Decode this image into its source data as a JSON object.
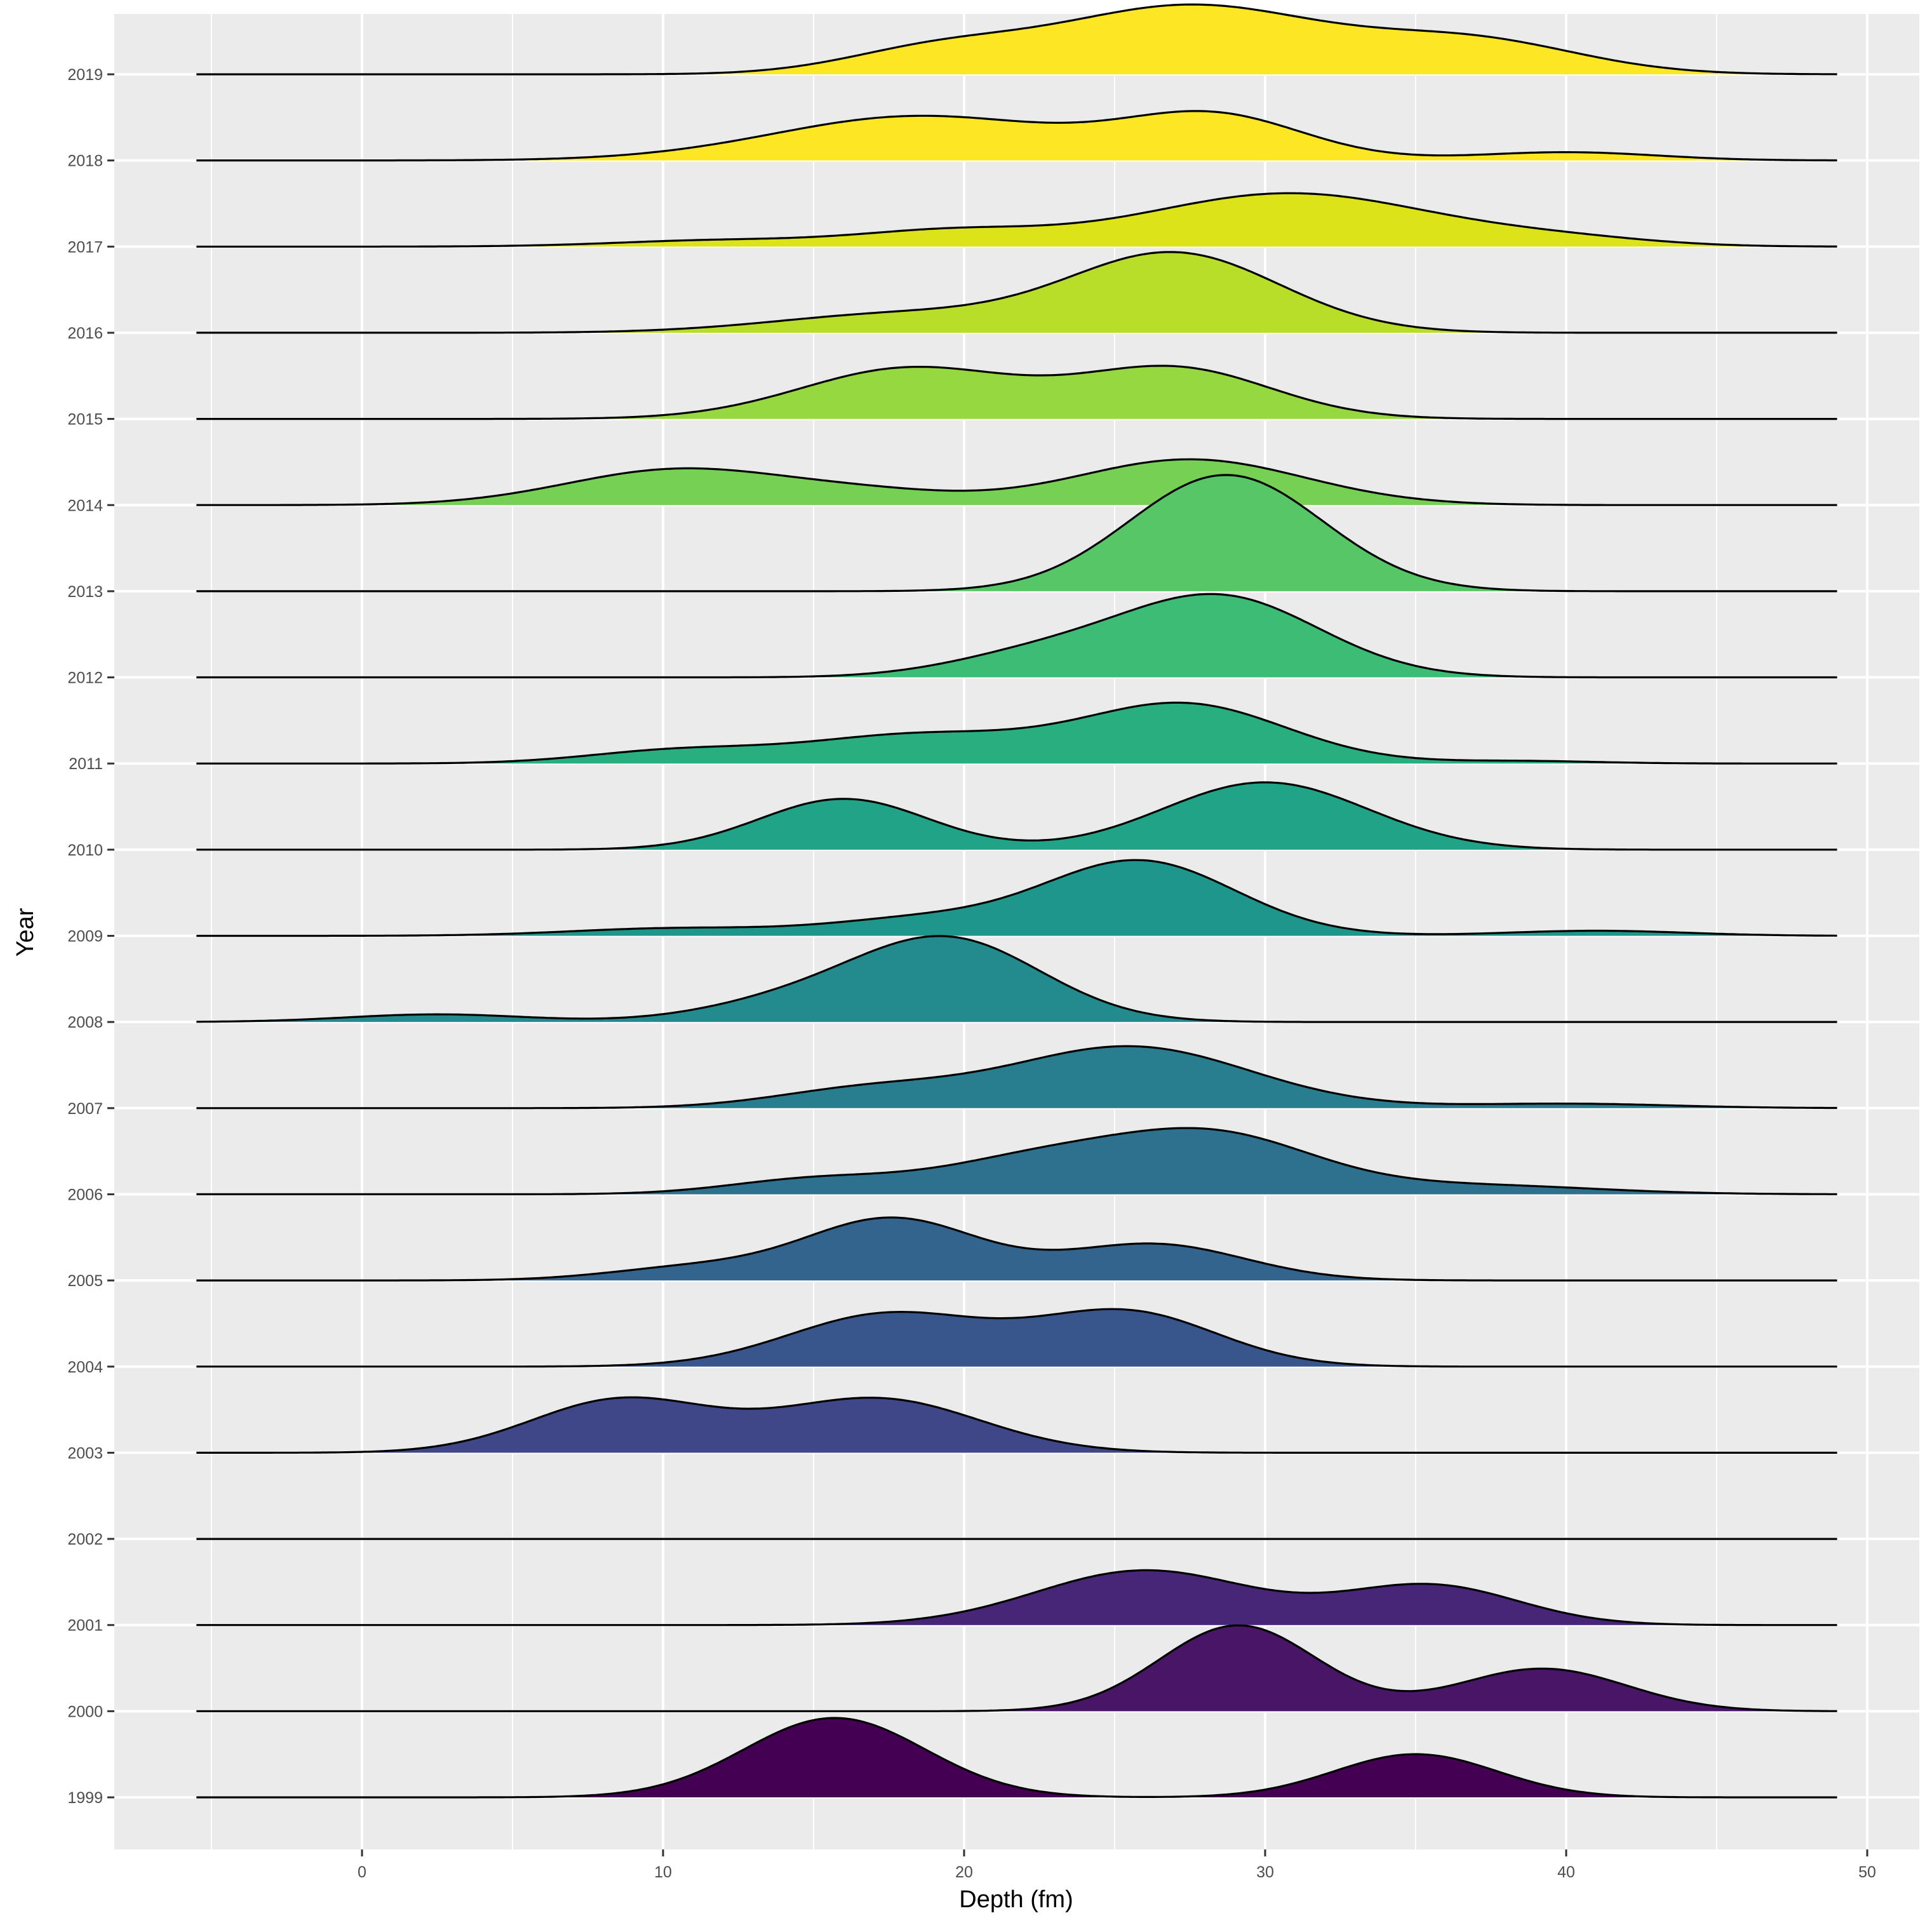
{
  "chart_data": {
    "type": "ridgeline",
    "title": "",
    "xlabel": "Depth (fm)",
    "ylabel": "Year",
    "xlim": [
      -9.5,
      52
    ],
    "x_ticks": [
      0,
      10,
      20,
      30,
      40,
      50
    ],
    "grid": true,
    "legend": "none",
    "density_range": [
      -5.5,
      49
    ],
    "colors": {
      "panel_background": "#EBEBEB",
      "grid": "#FFFFFF",
      "outline": "#000000",
      "tick_text": "#4D4D4D"
    },
    "years": [
      "1999",
      "2000",
      "2001",
      "2002",
      "2003",
      "2004",
      "2005",
      "2006",
      "2007",
      "2008",
      "2009",
      "2010",
      "2011",
      "2012",
      "2013",
      "2014",
      "2015",
      "2016",
      "2017",
      "2018",
      "2019"
    ],
    "series": [
      {
        "name": "1999",
        "color": "#440154",
        "components": [
          [
            15.7,
            3.0,
            1.25
          ],
          [
            35.0,
            2.7,
            0.68
          ]
        ]
      },
      {
        "name": "2000",
        "color": "#481567",
        "components": [
          [
            29.1,
            2.6,
            1.35
          ],
          [
            39.2,
            2.8,
            0.67
          ]
        ]
      },
      {
        "name": "2001",
        "color": "#482677",
        "components": [
          [
            26.0,
            3.6,
            0.86
          ],
          [
            35.5,
            2.9,
            0.62
          ]
        ]
      },
      {
        "name": "2002",
        "color": "#453781",
        "components": []
      },
      {
        "name": "2003",
        "color": "#3F4788",
        "components": [
          [
            8.6,
            3.0,
            0.83
          ],
          [
            17.1,
            3.4,
            0.85
          ]
        ]
      },
      {
        "name": "2004",
        "color": "#39568C",
        "components": [
          [
            17.5,
            3.3,
            0.83
          ],
          [
            25.4,
            3.0,
            0.85
          ]
        ]
      },
      {
        "name": "2005",
        "color": "#32648E",
        "components": [
          [
            17.6,
            2.9,
            0.97
          ],
          [
            11.0,
            2.8,
            0.2
          ],
          [
            26.3,
            3.0,
            0.57
          ]
        ]
      },
      {
        "name": "2006",
        "color": "#2D718E",
        "components": [
          [
            28.4,
            3.3,
            0.88
          ],
          [
            22.5,
            3.4,
            0.55
          ],
          [
            15.0,
            2.8,
            0.23
          ],
          [
            37.0,
            4.0,
            0.14
          ]
        ]
      },
      {
        "name": "2007",
        "color": "#287D8E",
        "components": [
          [
            25.5,
            4.0,
            0.97
          ],
          [
            16.8,
            3.1,
            0.29
          ],
          [
            40.0,
            3.5,
            0.07
          ]
        ]
      },
      {
        "name": "2008",
        "color": "#238A8D",
        "components": [
          [
            19.5,
            3.1,
            1.28
          ],
          [
            14.3,
            3.0,
            0.3
          ],
          [
            2.5,
            3.0,
            0.12
          ]
        ]
      },
      {
        "name": "2009",
        "color": "#1F968B",
        "components": [
          [
            25.8,
            3.2,
            1.18
          ],
          [
            18.5,
            3.0,
            0.25
          ],
          [
            10.5,
            3.5,
            0.12
          ],
          [
            41.0,
            3.0,
            0.08
          ]
        ]
      },
      {
        "name": "2010",
        "color": "#20A386",
        "components": [
          [
            16.0,
            2.8,
            0.8
          ],
          [
            30.0,
            3.4,
            1.06
          ]
        ]
      },
      {
        "name": "2011",
        "color": "#29AF7F",
        "components": [
          [
            27.3,
            3.4,
            0.93
          ],
          [
            18.5,
            3.7,
            0.45
          ],
          [
            10.5,
            3.0,
            0.2
          ],
          [
            38.5,
            2.5,
            0.04
          ]
        ]
      },
      {
        "name": "2012",
        "color": "#3CBC75",
        "components": [
          [
            28.5,
            3.3,
            1.26
          ],
          [
            22.5,
            3.0,
            0.35
          ]
        ]
      },
      {
        "name": "2013",
        "color": "#56C667",
        "components": [
          [
            28.7,
            3.2,
            1.83
          ]
        ]
      },
      {
        "name": "2014",
        "color": "#75D054",
        "components": [
          [
            10.5,
            3.7,
            0.56
          ],
          [
            27.5,
            3.8,
            0.72
          ],
          [
            17.0,
            3.0,
            0.17
          ]
        ]
      },
      {
        "name": "2015",
        "color": "#95D840",
        "components": [
          [
            18.2,
            3.6,
            0.8
          ],
          [
            27.0,
            3.2,
            0.79
          ]
        ]
      },
      {
        "name": "2016",
        "color": "#B8DE29",
        "components": [
          [
            27.0,
            3.5,
            1.24
          ],
          [
            18.0,
            4.2,
            0.3
          ]
        ]
      },
      {
        "name": "2017",
        "color": "#DCE318",
        "components": [
          [
            30.8,
            4.8,
            0.84
          ],
          [
            19.5,
            3.1,
            0.23
          ],
          [
            12.0,
            3.5,
            0.1
          ],
          [
            40.0,
            3.0,
            0.1
          ]
        ]
      },
      {
        "name": "2018",
        "color": "#FDE725",
        "components": [
          [
            18.5,
            4.8,
            0.7
          ],
          [
            28.3,
            3.0,
            0.68
          ],
          [
            40.0,
            3.0,
            0.13
          ]
        ]
      },
      {
        "name": "2019",
        "color": "#FDE725",
        "components": [
          [
            27.5,
            4.5,
            1.08
          ],
          [
            37.0,
            3.5,
            0.5
          ],
          [
            19.0,
            3.0,
            0.35
          ]
        ]
      }
    ]
  }
}
